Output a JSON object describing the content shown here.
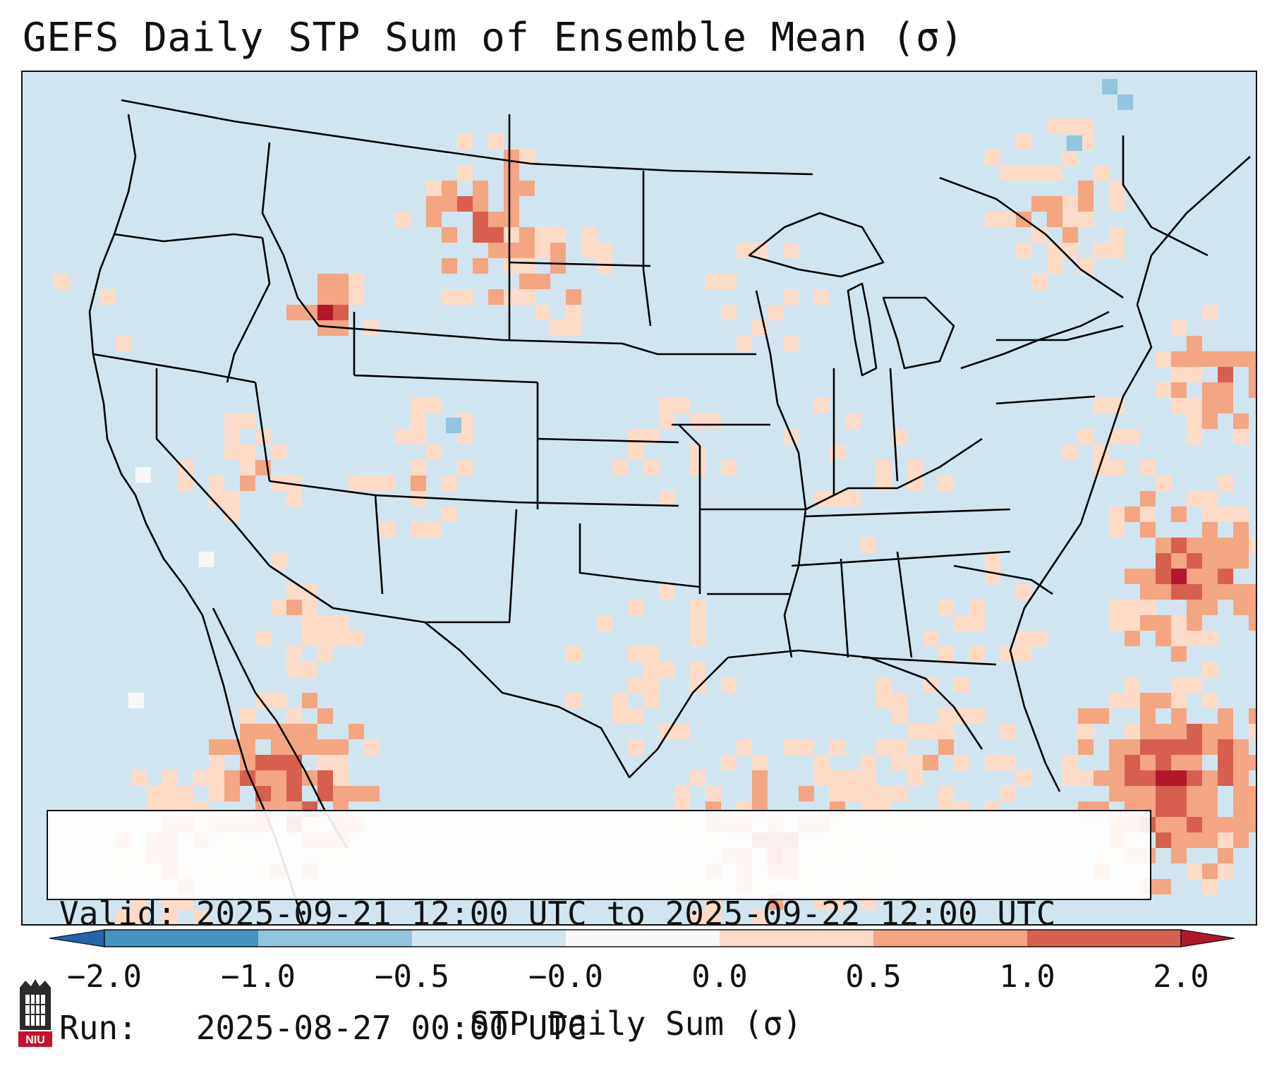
{
  "title": "GEFS Daily STP Sum of Ensemble Mean (σ)",
  "info": {
    "valid": "Valid: 2025-09-21 12:00 UTC to 2025-09-22 12:00 UTC",
    "run": "Run:   2025-08-27 00:00 UTC"
  },
  "colorbar": {
    "label": "STP Daily Sum (σ)",
    "ticks": [
      "−2.0",
      "−1.0",
      "−0.5",
      "−0.0",
      "0.0",
      "0.5",
      "1.0",
      "2.0"
    ],
    "colors": [
      "#4393c3",
      "#92c5de",
      "#d1e5f0",
      "#f7f7f7",
      "#fddbc7",
      "#f4a582",
      "#d6604d"
    ],
    "extend_low": "#2166ac",
    "extend_high": "#b2182b"
  },
  "map": {
    "background_color": "#d1e5f0",
    "colors": {
      "light": "#fddbc7",
      "medium": "#f4a582",
      "strong": "#d6604d",
      "extreme": "#b2182b",
      "neg_light": "#92c5de",
      "white": "#f7f7f7"
    }
  },
  "logo": {
    "text": "NIU"
  }
}
